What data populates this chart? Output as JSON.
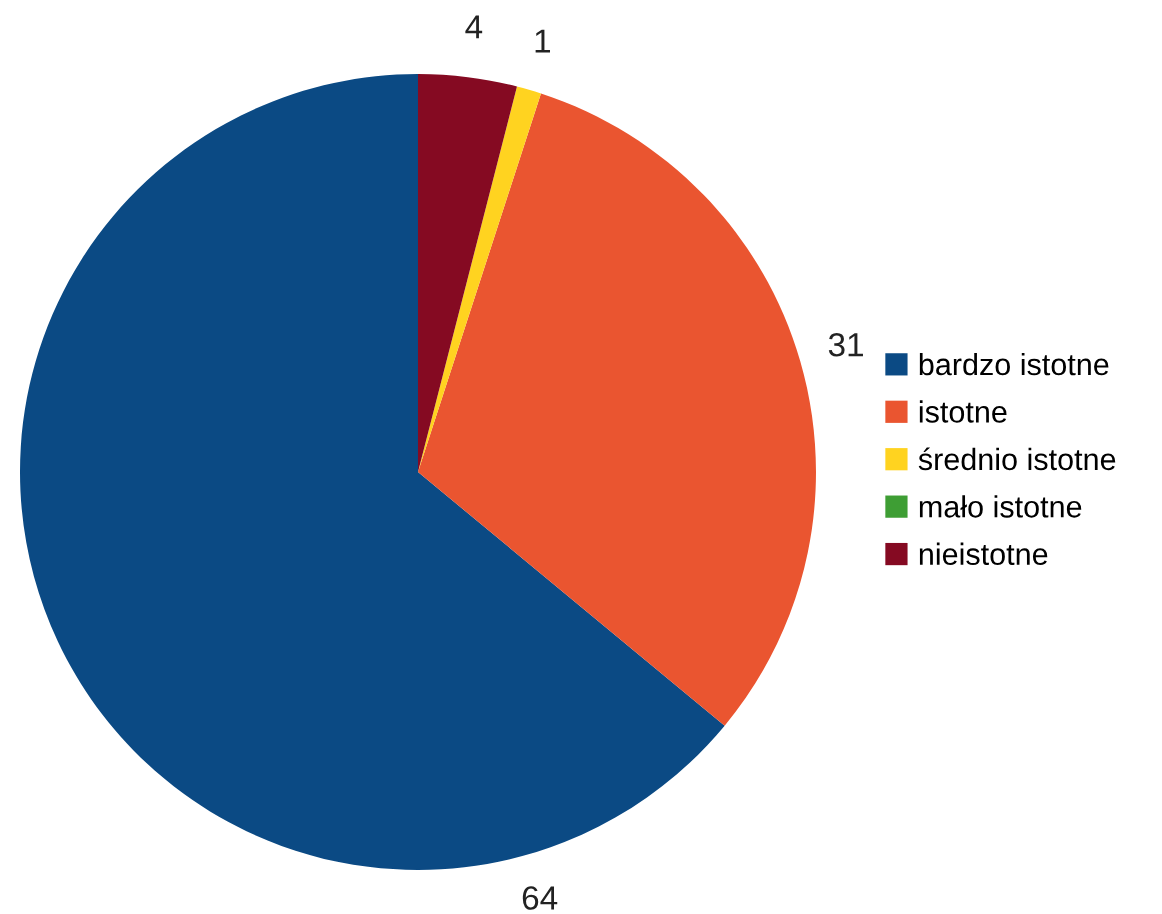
{
  "chart_data": {
    "type": "pie",
    "categories": [
      "bardzo istotne",
      "istotne",
      "średnio istotne",
      "mało istotne",
      "nieistotne"
    ],
    "values": [
      64,
      31,
      1,
      0,
      4
    ],
    "colors": [
      "#0b4a84",
      "#ea5530",
      "#ffd320",
      "#3e9e34",
      "#850a22"
    ],
    "value_labels": [
      "64",
      "31",
      "1",
      null,
      "4"
    ],
    "legend": "right"
  }
}
